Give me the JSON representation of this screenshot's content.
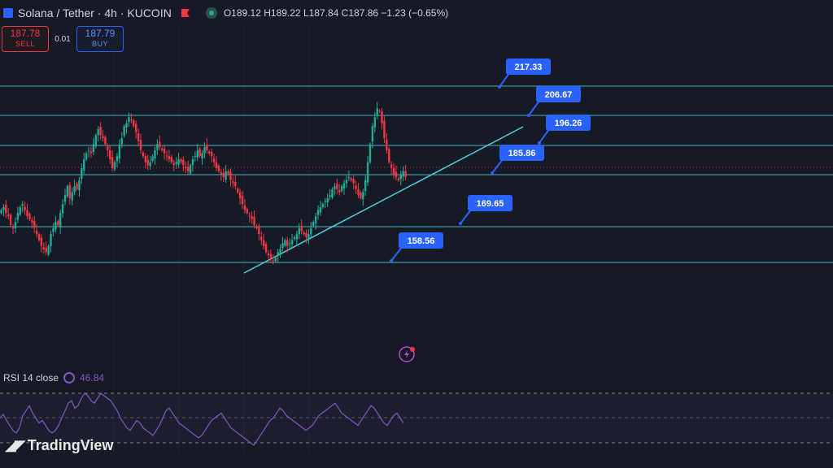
{
  "header": {
    "symbol": "Solana / Tether · 4h · KUCOIN",
    "open_label": "O",
    "open": "189.12",
    "high_label": "H",
    "high": "189.22",
    "low_label": "L",
    "low": "187.84",
    "close_label": "C",
    "close": "187.86",
    "change": "−1.23 (−0.65%)"
  },
  "trade": {
    "sell_price": "187.78",
    "sell_label": "SELL",
    "spread": "0.01",
    "buy_price": "187.79",
    "buy_label": "BUY"
  },
  "rsi": {
    "label": "RSI 14 close",
    "value": "46.84"
  },
  "branding": {
    "logo_text": "TradingView"
  },
  "colors": {
    "up": "#22ab94",
    "down": "#f23645",
    "levels": "#4dd0e1",
    "label_bg": "#2962ff",
    "rsi": "#7e57c2"
  },
  "chart_data": {
    "type": "candlestick",
    "price_levels": [
      "217.33",
      "206.67",
      "196.26",
      "185.86",
      "169.65",
      "158.56"
    ],
    "close_series": [
      176,
      177,
      175,
      174,
      171,
      170,
      172,
      175,
      177,
      178,
      176,
      174,
      173,
      172,
      170,
      168,
      166,
      164,
      163,
      162,
      164,
      168,
      170,
      172,
      171,
      175,
      178,
      181,
      184,
      180,
      182,
      184,
      183,
      186,
      190,
      193,
      195,
      196,
      195,
      198,
      201,
      203,
      201,
      200,
      198,
      196,
      193,
      190,
      192,
      194,
      198,
      200,
      204,
      205,
      207,
      206,
      204,
      202,
      199,
      196,
      194,
      192,
      191,
      192,
      194,
      196,
      198,
      197,
      196,
      195,
      194,
      193,
      192,
      191,
      192,
      193,
      192,
      191,
      190,
      189,
      191,
      193,
      194,
      196,
      194,
      195,
      197,
      196,
      195,
      194,
      192,
      190,
      189,
      188,
      187,
      189,
      188,
      186,
      185,
      184,
      182,
      180,
      178,
      176,
      175,
      174,
      173,
      171,
      170,
      168,
      166,
      164,
      162,
      161,
      160,
      159,
      160,
      162,
      163,
      165,
      166,
      164,
      165,
      166,
      167,
      168,
      170,
      169,
      168,
      167,
      168,
      170,
      172,
      174,
      176,
      177,
      178,
      179,
      180,
      181,
      183,
      184,
      183,
      182,
      184,
      185,
      186,
      187,
      186,
      185,
      183,
      181,
      180,
      182,
      186,
      192,
      198,
      204,
      207,
      210,
      209,
      205,
      200,
      196,
      192,
      190,
      188,
      187,
      186,
      188,
      189,
      187
    ],
    "rsi_series": [
      50,
      53,
      48,
      44,
      40,
      38,
      42,
      52,
      56,
      60,
      54,
      50,
      46,
      48,
      44,
      40,
      38,
      40,
      44,
      50,
      56,
      62,
      64,
      58,
      60,
      66,
      70,
      68,
      64,
      62,
      66,
      70,
      68,
      66,
      64,
      60,
      56,
      50,
      46,
      42,
      40,
      44,
      48,
      46,
      42,
      40,
      38,
      36,
      40,
      44,
      50,
      56,
      58,
      54,
      50,
      46,
      44,
      42,
      40,
      38,
      36,
      34,
      36,
      40,
      44,
      48,
      50,
      52,
      54,
      50,
      46,
      42,
      40,
      38,
      36,
      34,
      32,
      30,
      28,
      32,
      36,
      40,
      44,
      48,
      50,
      54,
      58,
      56,
      52,
      50,
      48,
      46,
      44,
      42,
      40,
      42,
      44,
      48,
      52,
      54,
      56,
      58,
      60,
      62,
      58,
      54,
      52,
      50,
      48,
      46,
      44,
      48,
      52,
      56,
      60,
      58,
      54,
      50,
      46,
      44,
      48,
      52,
      54,
      50,
      46
    ],
    "rsi_levels": [
      70,
      50,
      30
    ]
  }
}
